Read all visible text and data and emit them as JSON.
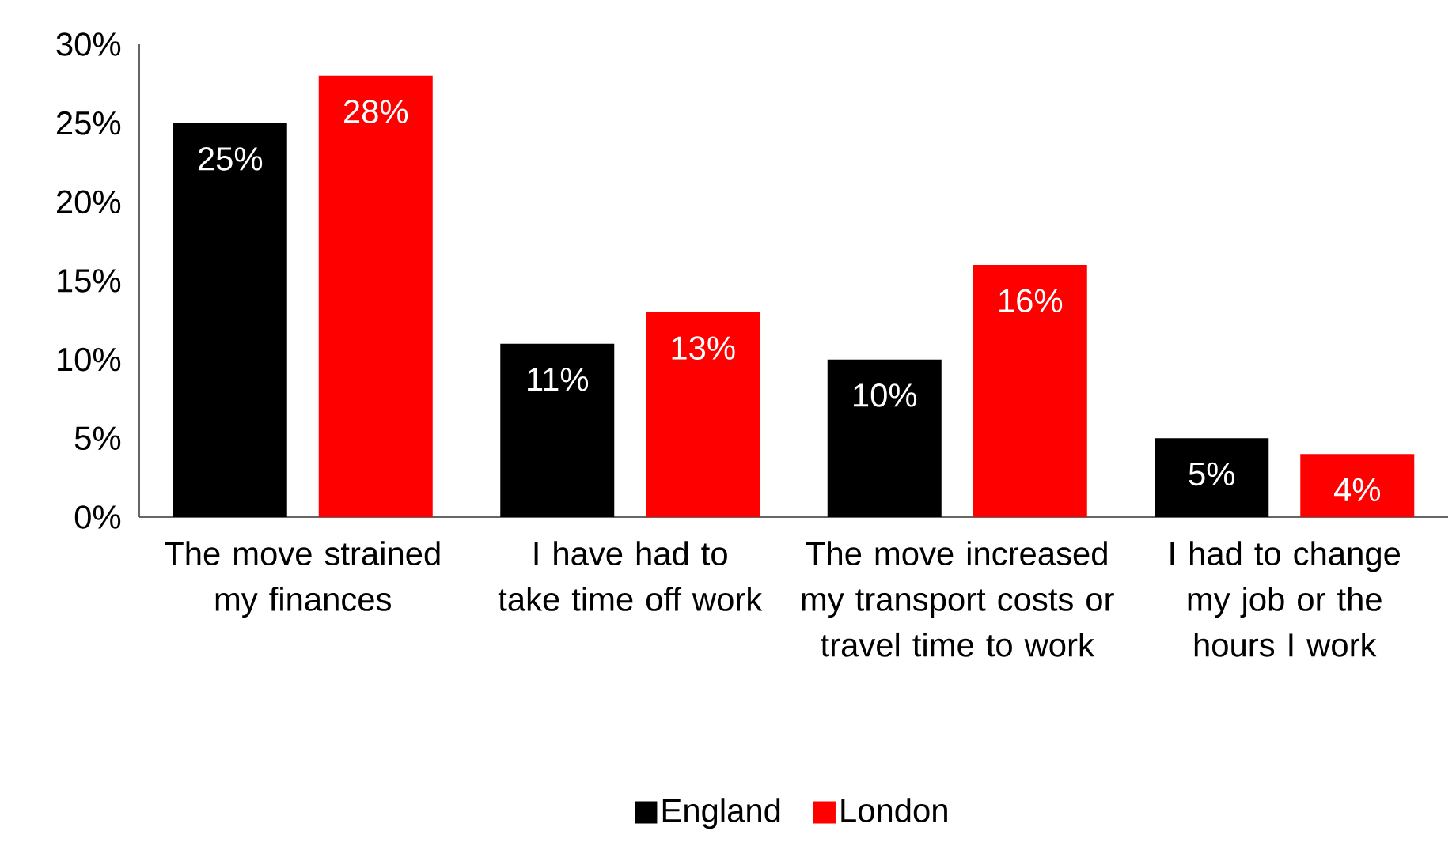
{
  "chart_data": {
    "type": "bar",
    "categories": [
      "The move strained my finances",
      "I have had to take time off work",
      "The move increased my transport costs or travel time to work",
      "I had to change my job or the hours I work"
    ],
    "series": [
      {
        "name": "England",
        "color": "#000000",
        "values": [
          25,
          11,
          10,
          5
        ],
        "value_labels": [
          "25%",
          "11%",
          "10%",
          "5%"
        ]
      },
      {
        "name": "London",
        "color": "#ff0000",
        "values": [
          28,
          13,
          16,
          4
        ],
        "value_labels": [
          "28%",
          "13%",
          "16%",
          "4%"
        ]
      }
    ],
    "ylim": [
      0,
      30
    ],
    "yticks": [
      {
        "value": 0,
        "label": "0%"
      },
      {
        "value": 5,
        "label": "5%"
      },
      {
        "value": 10,
        "label": "10%"
      },
      {
        "value": 15,
        "label": "15%"
      },
      {
        "value": 20,
        "label": "20%"
      },
      {
        "value": 25,
        "label": "25%"
      },
      {
        "value": 30,
        "label": "30%"
      }
    ],
    "grid": false,
    "legend": "bottom"
  }
}
